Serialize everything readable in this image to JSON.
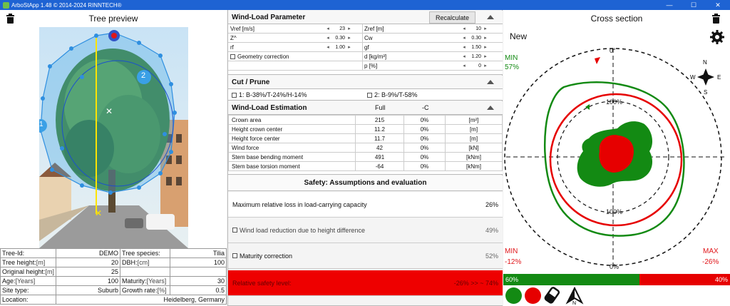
{
  "window": {
    "title": "ArboStApp 1.48  © 2014-2024 RINNTECH®",
    "controls": [
      "—",
      "☐",
      "✕"
    ]
  },
  "left": {
    "title": "Tree preview",
    "info": {
      "tree_id_label": "Tree-Id:",
      "tree_id": "DEMO",
      "species_label": "Tree species:",
      "species": "Tilia",
      "height_label": "Tree height:",
      "height_unit": "[m]",
      "height": "20",
      "dbh_label": "DBH:",
      "dbh_unit": "[cm]",
      "dbh": "100",
      "orig_height_label": "Original height:",
      "orig_height_unit": "[m]",
      "orig_height": "25",
      "age_label": "Age:",
      "age_unit": "[Years]",
      "age": "100",
      "maturity_label": "Maturity:",
      "maturity_unit": "[Years]",
      "maturity": "30",
      "site_label": "Site type:",
      "site": "Suburb",
      "growth_label": "Growth rate:",
      "growth_unit": "[%]",
      "growth": "0.5",
      "location_label": "Location:",
      "location": "Heidelberg, Germany"
    },
    "markers": {
      "m1": "1",
      "m2": "2"
    }
  },
  "windload_param": {
    "title": "Wind-Load Parameter",
    "recalc_label": "Recalculate",
    "vref_label": "Vref [m/s]",
    "vref": "23",
    "zref_label": "Zref [m]",
    "zref": "10",
    "z_label": "Z^",
    "z": "0.30",
    "cw_label": "Cw",
    "cw": "0.30",
    "rf_label": "rf",
    "rf": "1.00",
    "gf_label": "gf",
    "gf": "1.50",
    "geom_label": "Geometry correction",
    "d_label": "d [kg/m³]",
    "d": "1.20",
    "p_label": "p [%]",
    "p": "0"
  },
  "cut": {
    "title": "Cut / Prune",
    "opt1": "1: B-38%/T-24%/H-14%",
    "opt2": "2: B-9%/T-58%"
  },
  "estimation": {
    "title": "Wind-Load Estimation",
    "col_full": "Full",
    "col_c": "-C",
    "rows": [
      {
        "name": "Crown area",
        "full": "215",
        "c": "0%",
        "unit": "[m²]"
      },
      {
        "name": "Height crown center",
        "full": "11.2",
        "c": "0%",
        "unit": "[m]"
      },
      {
        "name": "Height force center",
        "full": "11.7",
        "c": "0%",
        "unit": "[m]"
      },
      {
        "name": "Wind force",
        "full": "42",
        "c": "0%",
        "unit": "[kN]"
      },
      {
        "name": "Stem base bending moment",
        "full": "491",
        "c": "0%",
        "unit": "[kNm]"
      },
      {
        "name": "Stem base torsion moment",
        "full": "-64",
        "c": "0%",
        "unit": "[kNm]"
      }
    ]
  },
  "safety": {
    "title": "Safety: Assumptions and evaluation",
    "max_loss_label": "Maximum relative loss in load-carrying capacity",
    "max_loss": "26%",
    "wind_red_label": "Wind load reduction due to height difference",
    "wind_red": "49%",
    "maturity_label": "Maturity correction",
    "maturity": "52%",
    "rel_label": "Relative safety level:",
    "rel": "-26%   >>   ~ 74%"
  },
  "cross": {
    "title": "Cross section",
    "new_label": "New",
    "min_top_label": "MIN",
    "min_top": "57%",
    "min_bot_label": "MIN",
    "min_bot": "-12%",
    "max_bot_label": "MAX",
    "max_bot": "-26%",
    "deg0_top": "0°",
    "deg0_bottom": "0%",
    "ring100_top": "100%",
    "ring100_bottom": "100%",
    "compass": {
      "n": "N",
      "s": "S",
      "e": "E",
      "w": "W"
    },
    "bar_green": "60%",
    "bar_red": "40%",
    "bar_green_fraction": 0.6,
    "colors": {
      "green": "#138a13",
      "red": "#e60000"
    }
  }
}
